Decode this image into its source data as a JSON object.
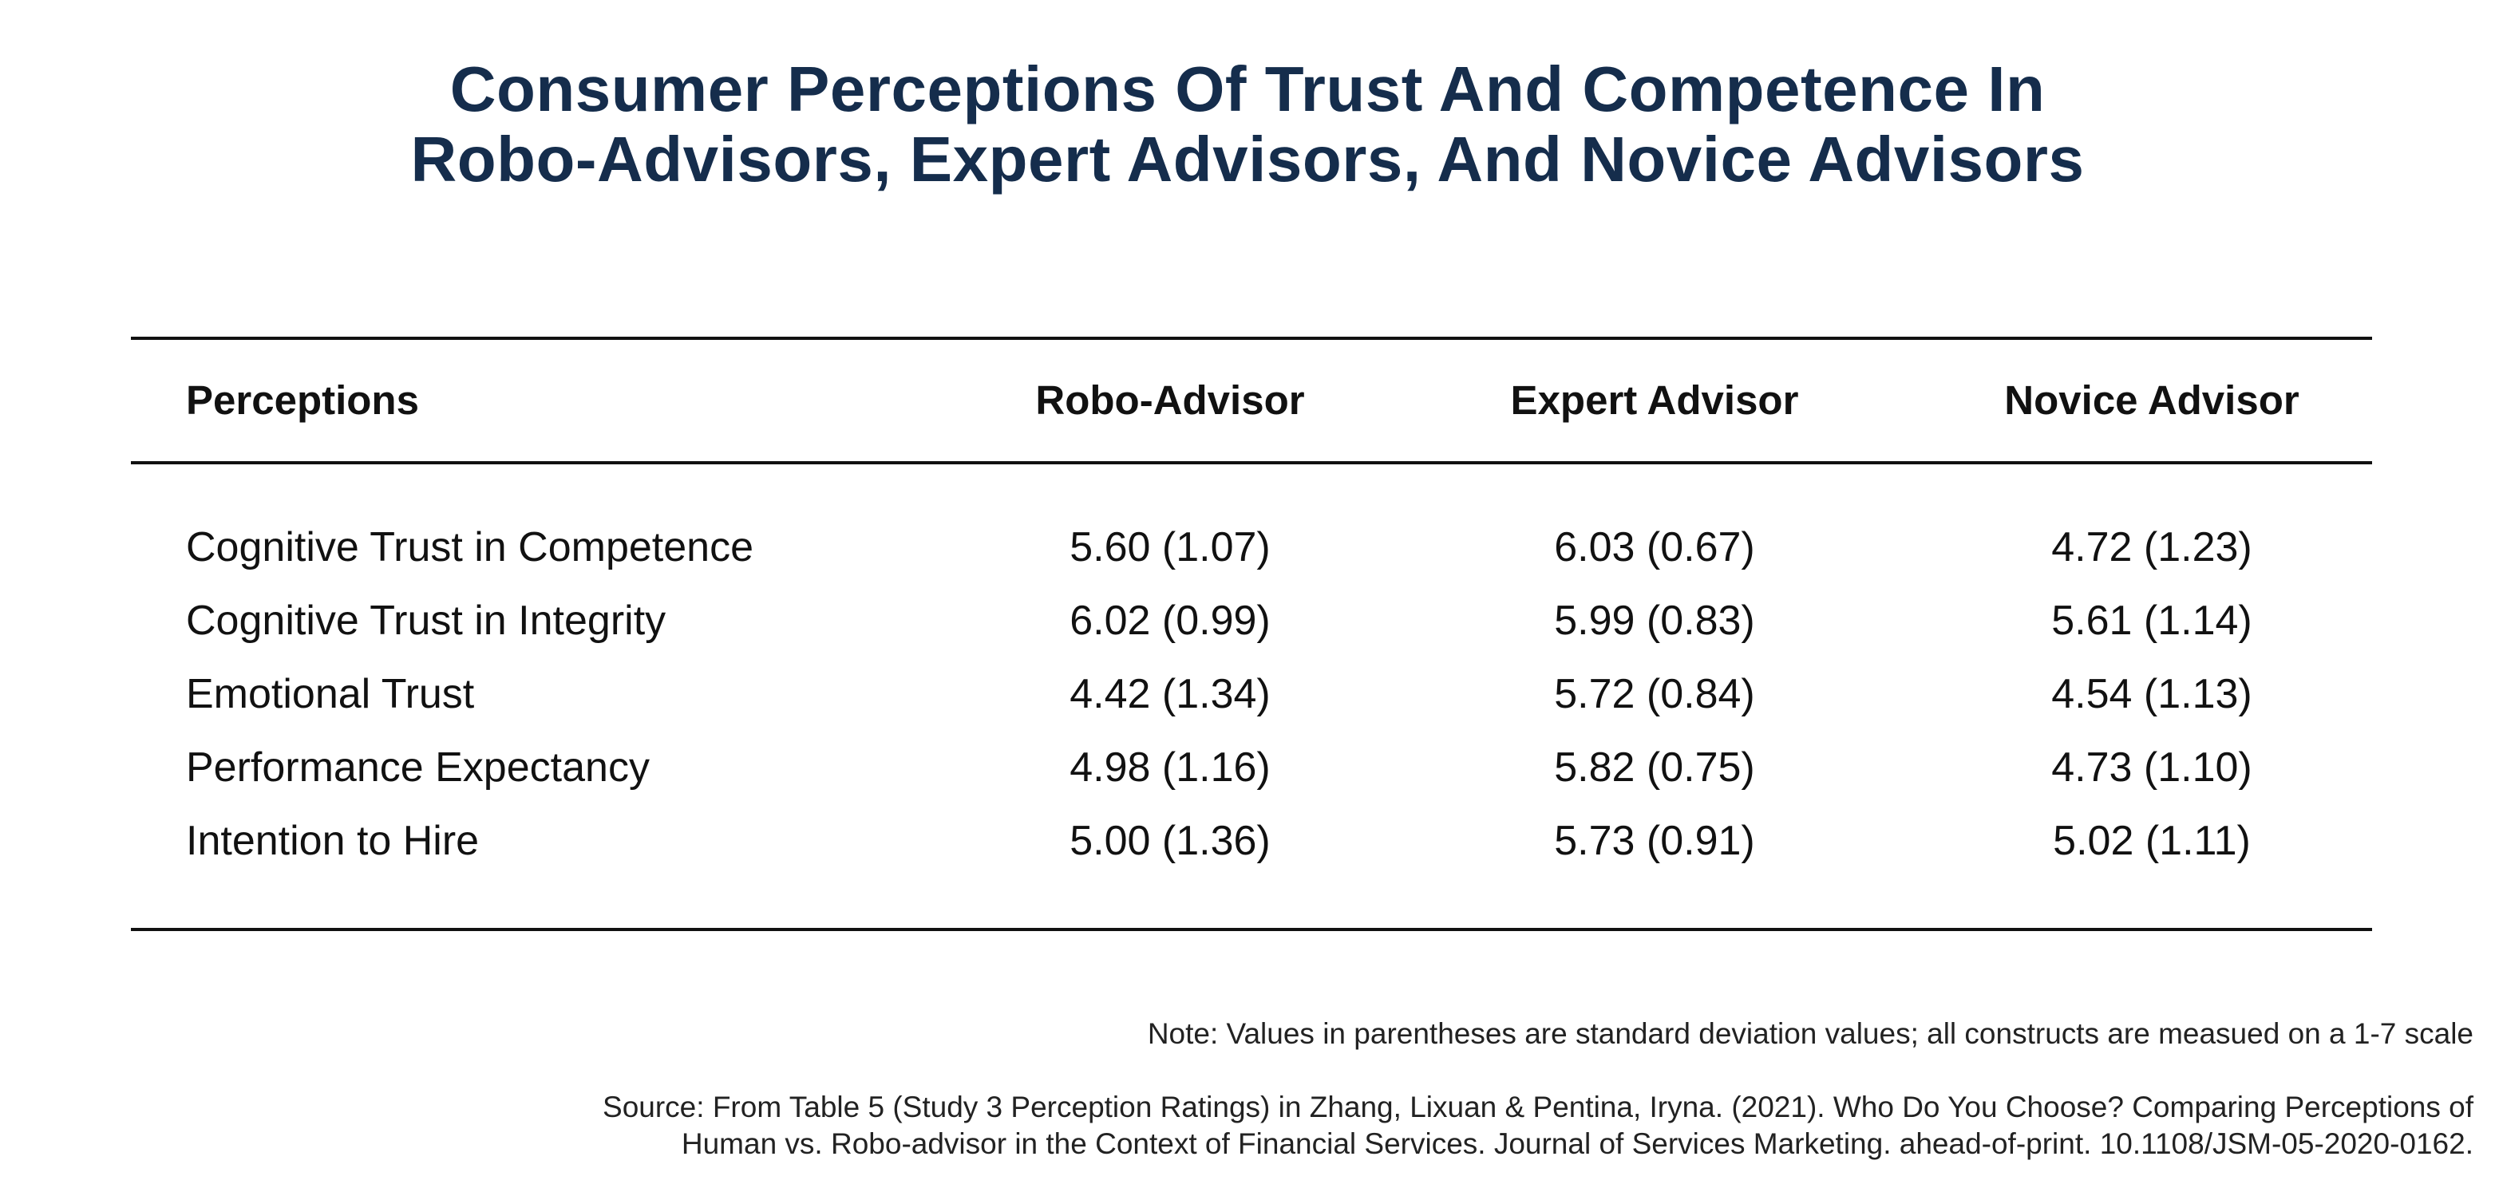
{
  "title": {
    "line1": "Consumer Perceptions Of Trust And Competence In",
    "line2": "Robo-Advisors, Expert Advisors, And Novice Advisors"
  },
  "table": {
    "headers": [
      "Perceptions",
      "Robo-Advisor",
      "Expert Advisor",
      "Novice Advisor"
    ],
    "rows": [
      [
        "Cognitive Trust in Competence",
        "5.60 (1.07)",
        "6.03 (0.67)",
        "4.72 (1.23)"
      ],
      [
        "Cognitive Trust in Integrity",
        "6.02 (0.99)",
        "5.99 (0.83)",
        "5.61 (1.14)"
      ],
      [
        "Emotional Trust",
        "4.42 (1.34)",
        "5.72 (0.84)",
        "4.54 (1.13)"
      ],
      [
        "Performance Expectancy",
        "4.98 (1.16)",
        "5.82 (0.75)",
        "4.73 (1.10)"
      ],
      [
        "Intention to Hire",
        "5.00 (1.36)",
        "5.73 (0.91)",
        "5.02 (1.11)"
      ]
    ]
  },
  "note": "Note: Values in parentheses are standard deviation values; all constructs are measued on a 1-7 scale",
  "source": {
    "line1": "Source: From Table 5 (Study 3 Perception Ratings) in Zhang, Lixuan & Pentina, Iryna. (2021). Who Do You Choose? Comparing Perceptions of",
    "line2": "Human vs. Robo-advisor in the Context of Financial Services. Journal of Services Marketing. ahead-of-print. 10.1108/JSM-05-2020-0162."
  },
  "colors": {
    "title": "#152d4c",
    "text": "#111111",
    "rule": "#111111"
  }
}
